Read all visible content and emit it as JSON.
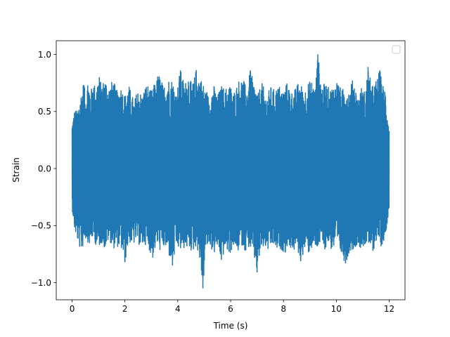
{
  "chart_data": {
    "type": "line",
    "title": "",
    "xlabel": "Time (s)",
    "ylabel": "Strain",
    "xlim": [
      -0.6,
      12.6
    ],
    "ylim": [
      -1.15,
      1.12
    ],
    "xticks": [
      0,
      2,
      4,
      6,
      8,
      10,
      12
    ],
    "xtick_labels": [
      "0",
      "2",
      "4",
      "6",
      "8",
      "10",
      "12"
    ],
    "yticks": [
      -1.0,
      -0.5,
      0.0,
      0.5,
      1.0
    ],
    "ytick_labels": [
      "−1.0",
      "−0.5",
      "0.0",
      "0.5",
      "1.0"
    ],
    "grid": false,
    "legend": {
      "placement": "upper-right",
      "entries": []
    },
    "series": [
      {
        "color": "#1f77b4",
        "x_start": 0,
        "x_end": 12,
        "sample_count": 2400,
        "envelope_upper": [
          [
            0,
            0.4
          ],
          [
            0.1,
            0.52
          ],
          [
            0.2,
            0.5
          ],
          [
            0.3,
            0.62
          ],
          [
            0.45,
            0.78
          ],
          [
            0.5,
            0.6
          ],
          [
            0.6,
            0.8
          ],
          [
            0.7,
            0.66
          ],
          [
            0.8,
            0.78
          ],
          [
            0.9,
            0.7
          ],
          [
            1.0,
            0.82
          ],
          [
            1.1,
            0.74
          ],
          [
            1.25,
            0.79
          ],
          [
            1.4,
            0.72
          ],
          [
            1.55,
            0.77
          ],
          [
            1.7,
            0.68
          ],
          [
            1.85,
            0.72
          ],
          [
            2.0,
            0.64
          ],
          [
            2.15,
            0.72
          ],
          [
            2.35,
            0.58
          ],
          [
            2.5,
            0.7
          ],
          [
            2.65,
            0.64
          ],
          [
            2.8,
            0.74
          ],
          [
            3.0,
            0.67
          ],
          [
            3.15,
            0.76
          ],
          [
            3.3,
            0.83
          ],
          [
            3.45,
            0.71
          ],
          [
            3.6,
            0.79
          ],
          [
            3.8,
            0.78
          ],
          [
            3.95,
            0.66
          ],
          [
            4.1,
            0.86
          ],
          [
            4.25,
            0.73
          ],
          [
            4.4,
            0.83
          ],
          [
            4.55,
            0.72
          ],
          [
            4.7,
            0.86
          ],
          [
            4.9,
            0.78
          ],
          [
            5.05,
            0.69
          ],
          [
            5.2,
            0.62
          ],
          [
            5.35,
            0.73
          ],
          [
            5.5,
            0.63
          ],
          [
            5.65,
            0.72
          ],
          [
            5.8,
            0.68
          ],
          [
            5.95,
            0.75
          ],
          [
            6.1,
            0.66
          ],
          [
            6.25,
            0.74
          ],
          [
            6.45,
            0.8
          ],
          [
            6.6,
            0.69
          ],
          [
            6.75,
            0.86
          ],
          [
            6.9,
            0.73
          ],
          [
            7.05,
            0.66
          ],
          [
            7.2,
            0.75
          ],
          [
            7.35,
            0.62
          ],
          [
            7.5,
            0.71
          ],
          [
            7.65,
            0.69
          ],
          [
            7.8,
            0.72
          ],
          [
            8.0,
            0.68
          ],
          [
            8.15,
            0.75
          ],
          [
            8.3,
            0.67
          ],
          [
            8.45,
            0.69
          ],
          [
            8.6,
            0.76
          ],
          [
            8.75,
            0.68
          ],
          [
            8.9,
            0.72
          ],
          [
            9.05,
            0.78
          ],
          [
            9.2,
            0.7
          ],
          [
            9.3,
            1.0
          ],
          [
            9.45,
            0.72
          ],
          [
            9.6,
            0.75
          ],
          [
            9.75,
            0.69
          ],
          [
            9.9,
            0.73
          ],
          [
            10.05,
            0.78
          ],
          [
            10.2,
            0.67
          ],
          [
            10.35,
            0.74
          ],
          [
            10.5,
            0.68
          ],
          [
            10.65,
            0.8
          ],
          [
            10.8,
            0.62
          ],
          [
            10.95,
            0.7
          ],
          [
            11.1,
            0.66
          ],
          [
            11.2,
            0.89
          ],
          [
            11.35,
            0.71
          ],
          [
            11.5,
            0.76
          ],
          [
            11.65,
            0.86
          ],
          [
            11.75,
            0.72
          ],
          [
            11.85,
            0.71
          ],
          [
            12.0,
            0.35
          ]
        ],
        "envelope_lower": [
          [
            0,
            -0.35
          ],
          [
            0.1,
            -0.55
          ],
          [
            0.2,
            -0.63
          ],
          [
            0.35,
            -0.72
          ],
          [
            0.5,
            -0.6
          ],
          [
            0.65,
            -0.67
          ],
          [
            0.8,
            -0.6
          ],
          [
            0.95,
            -0.7
          ],
          [
            1.1,
            -0.64
          ],
          [
            1.25,
            -0.7
          ],
          [
            1.4,
            -0.62
          ],
          [
            1.55,
            -0.7
          ],
          [
            1.7,
            -0.68
          ],
          [
            1.85,
            -0.7
          ],
          [
            2.0,
            -0.82
          ],
          [
            2.15,
            -0.63
          ],
          [
            2.3,
            -0.68
          ],
          [
            2.45,
            -0.62
          ],
          [
            2.6,
            -0.7
          ],
          [
            2.75,
            -0.66
          ],
          [
            2.9,
            -0.7
          ],
          [
            3.05,
            -0.78
          ],
          [
            3.2,
            -0.66
          ],
          [
            3.35,
            -0.72
          ],
          [
            3.5,
            -0.69
          ],
          [
            3.65,
            -0.74
          ],
          [
            3.8,
            -0.85
          ],
          [
            3.95,
            -0.69
          ],
          [
            4.1,
            -0.72
          ],
          [
            4.25,
            -0.69
          ],
          [
            4.4,
            -0.7
          ],
          [
            4.55,
            -0.72
          ],
          [
            4.7,
            -0.67
          ],
          [
            4.8,
            -0.75
          ],
          [
            4.95,
            -1.05
          ],
          [
            5.05,
            -0.72
          ],
          [
            5.2,
            -0.66
          ],
          [
            5.35,
            -0.74
          ],
          [
            5.5,
            -0.69
          ],
          [
            5.65,
            -0.8
          ],
          [
            5.8,
            -0.7
          ],
          [
            5.95,
            -0.75
          ],
          [
            6.1,
            -0.68
          ],
          [
            6.25,
            -0.73
          ],
          [
            6.4,
            -0.66
          ],
          [
            6.55,
            -0.72
          ],
          [
            6.7,
            -0.68
          ],
          [
            6.85,
            -0.75
          ],
          [
            7.0,
            -0.91
          ],
          [
            7.15,
            -0.71
          ],
          [
            7.3,
            -0.69
          ],
          [
            7.45,
            -0.73
          ],
          [
            7.6,
            -0.67
          ],
          [
            7.75,
            -0.72
          ],
          [
            7.9,
            -0.7
          ],
          [
            8.05,
            -0.74
          ],
          [
            8.2,
            -0.66
          ],
          [
            8.35,
            -0.72
          ],
          [
            8.5,
            -0.68
          ],
          [
            8.65,
            -0.81
          ],
          [
            8.8,
            -0.71
          ],
          [
            8.95,
            -0.73
          ],
          [
            9.1,
            -0.68
          ],
          [
            9.25,
            -0.72
          ],
          [
            9.4,
            -0.66
          ],
          [
            9.55,
            -0.71
          ],
          [
            9.7,
            -0.65
          ],
          [
            9.85,
            -0.72
          ],
          [
            10.0,
            -0.67
          ],
          [
            10.15,
            -0.74
          ],
          [
            10.35,
            -0.83
          ],
          [
            10.5,
            -0.72
          ],
          [
            10.65,
            -0.7
          ],
          [
            10.8,
            -0.66
          ],
          [
            10.95,
            -0.7
          ],
          [
            11.1,
            -0.65
          ],
          [
            11.25,
            -0.69
          ],
          [
            11.4,
            -0.72
          ],
          [
            11.55,
            -0.6
          ],
          [
            11.7,
            -0.68
          ],
          [
            11.85,
            -0.6
          ],
          [
            12.0,
            -0.35
          ]
        ]
      }
    ]
  }
}
